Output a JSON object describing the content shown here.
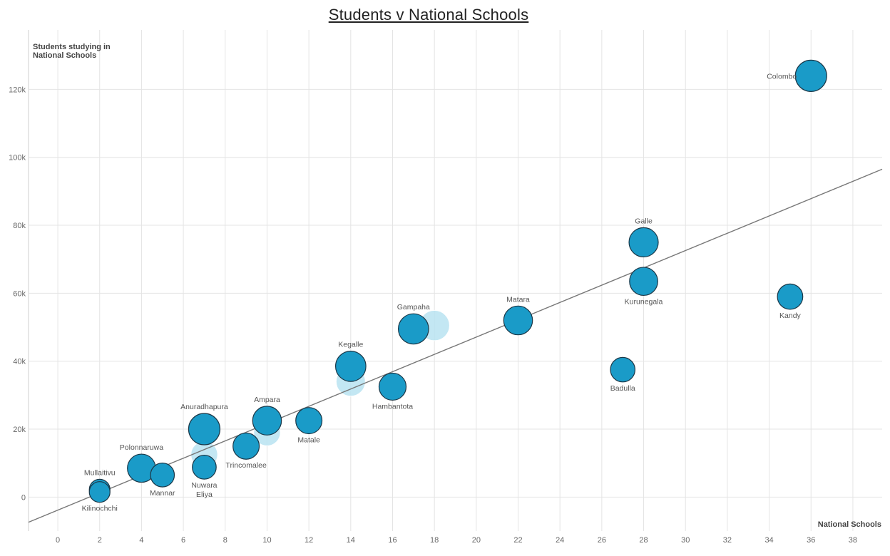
{
  "chart_data": {
    "type": "scatter",
    "title": "Students v National Schools",
    "xlabel": "National Schools",
    "ylabel": "Students studying in National Schools",
    "xlim": [
      -1.4,
      39.4
    ],
    "ylim": [
      -10000,
      137500
    ],
    "x_ticks": [
      0,
      2,
      4,
      6,
      8,
      10,
      12,
      14,
      16,
      18,
      20,
      22,
      24,
      26,
      28,
      30,
      32,
      34,
      36,
      38
    ],
    "y_ticks": [
      0,
      20000,
      40000,
      60000,
      80000,
      100000,
      120000
    ],
    "y_tick_labels": [
      "0",
      "20k",
      "40k",
      "60k",
      "80k",
      "100k",
      "120k"
    ],
    "grid": true,
    "trendline": {
      "x": [
        -1.4,
        39.4
      ],
      "y": [
        -7400,
        96500
      ]
    },
    "colors": {
      "bubble": "#1a9bc8",
      "bubble_faded": "#b9e3f1",
      "outline": "#1b3747",
      "trend": "#777777"
    },
    "points": [
      {
        "label": "Colombo",
        "x": 36,
        "y": 124000,
        "size": 1.0
      },
      {
        "label": "Galle",
        "x": 28,
        "y": 75000,
        "size": 0.9
      },
      {
        "label": "Kurunegala",
        "x": 28,
        "y": 63500,
        "size": 0.85
      },
      {
        "label": "Kandy",
        "x": 35,
        "y": 59000,
        "size": 0.72
      },
      {
        "label": "Matara",
        "x": 22,
        "y": 52000,
        "size": 0.88
      },
      {
        "label": "Gampaha",
        "x": 17,
        "y": 49500,
        "size": 0.95
      },
      {
        "label": "Kegalle",
        "x": 14,
        "y": 38500,
        "size": 0.95
      },
      {
        "label": "Badulla",
        "x": 27,
        "y": 37500,
        "size": 0.68
      },
      {
        "label": "Hambantota",
        "x": 16,
        "y": 32500,
        "size": 0.8
      },
      {
        "label": "Matale",
        "x": 12,
        "y": 22500,
        "size": 0.76
      },
      {
        "label": "Ampara",
        "x": 10,
        "y": 22500,
        "size": 0.88
      },
      {
        "label": "Anuradhapura",
        "x": 7,
        "y": 20000,
        "size": 1.0
      },
      {
        "label": "Trincomalee",
        "x": 9,
        "y": 15000,
        "size": 0.76
      },
      {
        "label": "Polonnaruwa",
        "x": 4,
        "y": 8500,
        "size": 0.85
      },
      {
        "label": "Nuwara Eliya",
        "x": 7,
        "y": 8800,
        "size": 0.65
      },
      {
        "label": "Mannar",
        "x": 5,
        "y": 6500,
        "size": 0.65
      },
      {
        "label": "Mullaitivu",
        "x": 2,
        "y": 2200,
        "size": 0.5
      },
      {
        "label": "Kilinochchi",
        "x": 2,
        "y": 1500,
        "size": 0.5
      }
    ],
    "ghost_points": [
      {
        "x": 18,
        "y": 50500,
        "size": 0.95
      },
      {
        "x": 14,
        "y": 34000,
        "size": 0.9
      },
      {
        "x": 10,
        "y": 19000,
        "size": 0.78
      },
      {
        "x": 7,
        "y": 12500,
        "size": 0.78
      },
      {
        "x": 4,
        "y": 7500,
        "size": 0.6
      }
    ]
  }
}
